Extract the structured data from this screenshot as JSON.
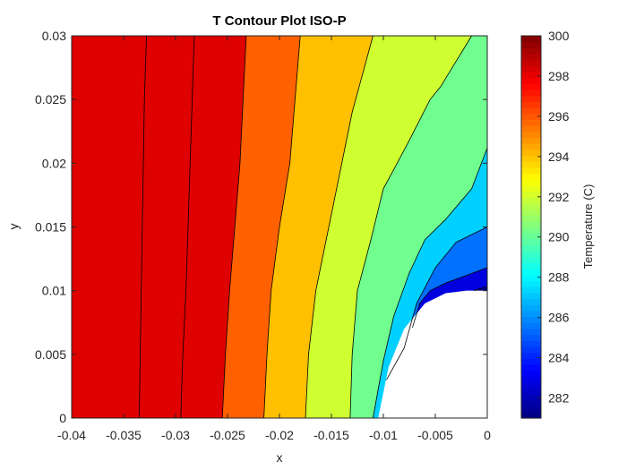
{
  "chart_data": {
    "type": "contour",
    "title": "T Contour Plot ISO-P",
    "xlabel": "x",
    "ylabel": "y",
    "xlim": [
      -0.04,
      0
    ],
    "ylim": [
      0,
      0.03
    ],
    "x_ticks": [
      "-0.04",
      "-0.035",
      "-0.03",
      "-0.025",
      "-0.02",
      "-0.015",
      "-0.01",
      "-0.005",
      "0"
    ],
    "y_ticks": [
      "0",
      "0.005",
      "0.01",
      "0.015",
      "0.02",
      "0.025",
      "0.03"
    ],
    "colorbar": {
      "label": "Temperature (C)",
      "range": [
        281,
        300
      ],
      "ticks": [
        "282",
        "284",
        "286",
        "288",
        "290",
        "292",
        "294",
        "296",
        "298",
        "300"
      ],
      "colormap": "jet"
    },
    "level_fill_colors": [
      "#00008f",
      "#0000df",
      "#0070ff",
      "#00d0ff",
      "#70ff8f",
      "#cfff30",
      "#ffc000",
      "#ff6000",
      "#df0000"
    ],
    "contour_lines": [
      {
        "points": [
          [
            -0.0013,
            0.01
          ],
          [
            -0.0005,
            0.0102
          ],
          [
            0.0,
            0.0103
          ]
        ]
      },
      {
        "points": [
          [
            -0.0072,
            0.0071
          ],
          [
            -0.0065,
            0.009
          ],
          [
            -0.0055,
            0.01
          ],
          [
            -0.004,
            0.0106
          ],
          [
            -0.002,
            0.0112
          ],
          [
            0.0,
            0.0118
          ]
        ]
      },
      {
        "points": [
          [
            -0.0097,
            0.003
          ],
          [
            -0.008,
            0.0055
          ],
          [
            -0.0068,
            0.009
          ],
          [
            -0.005,
            0.0118
          ],
          [
            -0.003,
            0.0138
          ],
          [
            0.0,
            0.015
          ]
        ]
      },
      {
        "points": [
          [
            -0.011,
            0.0
          ],
          [
            -0.01,
            0.0045
          ],
          [
            -0.009,
            0.008
          ],
          [
            -0.0075,
            0.0114
          ],
          [
            -0.006,
            0.014
          ],
          [
            -0.004,
            0.0156
          ],
          [
            -0.0015,
            0.018
          ],
          [
            0.0,
            0.0212
          ]
        ]
      },
      {
        "points": [
          [
            -0.0132,
            0.0
          ],
          [
            -0.013,
            0.005
          ],
          [
            -0.0125,
            0.01
          ],
          [
            -0.0112,
            0.014
          ],
          [
            -0.01,
            0.018
          ],
          [
            -0.009,
            0.0195
          ],
          [
            -0.0075,
            0.0218
          ],
          [
            -0.0055,
            0.025
          ],
          [
            -0.0045,
            0.026
          ],
          [
            -0.003,
            0.028
          ],
          [
            -0.0015,
            0.03
          ]
        ]
      },
      {
        "points": [
          [
            -0.0175,
            0.0
          ],
          [
            -0.0172,
            0.005
          ],
          [
            -0.0165,
            0.01
          ],
          [
            -0.0155,
            0.014
          ],
          [
            -0.0145,
            0.018
          ],
          [
            -0.0135,
            0.022
          ],
          [
            -0.013,
            0.024
          ],
          [
            -0.012,
            0.027
          ],
          [
            -0.011,
            0.03
          ]
        ]
      },
      {
        "points": [
          [
            -0.0215,
            0.0
          ],
          [
            -0.0212,
            0.005
          ],
          [
            -0.0208,
            0.01
          ],
          [
            -0.02,
            0.015
          ],
          [
            -0.019,
            0.02
          ],
          [
            -0.0185,
            0.025
          ],
          [
            -0.018,
            0.03
          ]
        ]
      },
      {
        "points": [
          [
            -0.0255,
            0.0
          ],
          [
            -0.0252,
            0.005
          ],
          [
            -0.0248,
            0.01
          ],
          [
            -0.0243,
            0.015
          ],
          [
            -0.0238,
            0.02
          ],
          [
            -0.0235,
            0.025
          ],
          [
            -0.0232,
            0.03
          ]
        ]
      },
      {
        "points": [
          [
            -0.0295,
            0.0
          ],
          [
            -0.0293,
            0.005
          ],
          [
            -0.029,
            0.01
          ],
          [
            -0.0288,
            0.015
          ],
          [
            -0.0286,
            0.02
          ],
          [
            -0.0284,
            0.025
          ],
          [
            -0.0282,
            0.03
          ]
        ]
      },
      {
        "points": [
          [
            -0.0335,
            0.0
          ],
          [
            -0.0334,
            0.005
          ],
          [
            -0.0333,
            0.01
          ],
          [
            -0.0332,
            0.015
          ],
          [
            -0.0331,
            0.02
          ],
          [
            -0.033,
            0.025
          ],
          [
            -0.0328,
            0.03
          ]
        ]
      }
    ],
    "blank_region": [
      [
        -0.0105,
        0.0
      ],
      [
        -0.0095,
        0.004
      ],
      [
        -0.008,
        0.007
      ],
      [
        -0.006,
        0.009
      ],
      [
        -0.004,
        0.0098
      ],
      [
        -0.002,
        0.01
      ],
      [
        0.0,
        0.01
      ],
      [
        0.0,
        0.0
      ]
    ],
    "grid": false
  }
}
